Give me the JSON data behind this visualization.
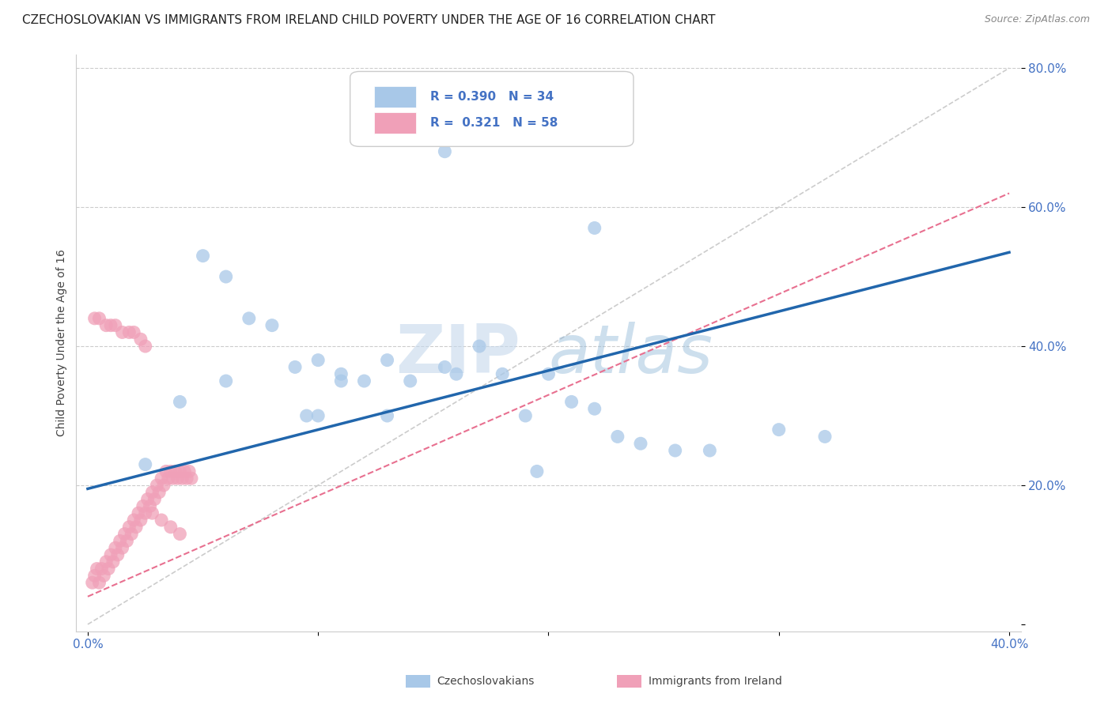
{
  "title": "CZECHOSLOVAKIAN VS IMMIGRANTS FROM IRELAND CHILD POVERTY UNDER THE AGE OF 16 CORRELATION CHART",
  "source": "Source: ZipAtlas.com",
  "ylabel": "Child Poverty Under the Age of 16",
  "xlabel": "",
  "xlim": [
    -0.005,
    0.405
  ],
  "ylim": [
    -0.01,
    0.82
  ],
  "xticks": [
    0.0,
    0.1,
    0.2,
    0.3,
    0.4
  ],
  "yticks": [
    0.0,
    0.2,
    0.4,
    0.6,
    0.8
  ],
  "xtick_labels": [
    "0.0%",
    "",
    "",
    "",
    "40.0%"
  ],
  "ytick_labels": [
    "",
    "20.0%",
    "40.0%",
    "60.0%",
    "80.0%"
  ],
  "blue_color": "#A8C8E8",
  "pink_color": "#F0A0B8",
  "blue_line_color": "#2166AC",
  "pink_line_color": "#E87090",
  "legend_R1": "0.390",
  "legend_N1": "34",
  "legend_R2": "0.321",
  "legend_N2": "58",
  "legend_label1": "Czechoslovakians",
  "legend_label2": "Immigrants from Ireland",
  "watermark_zip": "ZIP",
  "watermark_atlas": "atlas",
  "blue_points_x": [
    0.025,
    0.04,
    0.05,
    0.06,
    0.06,
    0.07,
    0.08,
    0.09,
    0.095,
    0.1,
    0.1,
    0.11,
    0.11,
    0.12,
    0.13,
    0.13,
    0.14,
    0.155,
    0.16,
    0.17,
    0.18,
    0.19,
    0.2,
    0.21,
    0.22,
    0.23,
    0.24,
    0.255,
    0.27,
    0.3,
    0.155,
    0.22,
    0.195,
    0.32
  ],
  "blue_points_y": [
    0.23,
    0.32,
    0.53,
    0.5,
    0.35,
    0.44,
    0.43,
    0.37,
    0.3,
    0.3,
    0.38,
    0.35,
    0.36,
    0.35,
    0.38,
    0.3,
    0.35,
    0.37,
    0.36,
    0.4,
    0.36,
    0.3,
    0.36,
    0.32,
    0.31,
    0.27,
    0.26,
    0.25,
    0.25,
    0.28,
    0.68,
    0.57,
    0.22,
    0.27
  ],
  "pink_points_x": [
    0.002,
    0.003,
    0.004,
    0.005,
    0.006,
    0.007,
    0.008,
    0.009,
    0.01,
    0.011,
    0.012,
    0.013,
    0.014,
    0.015,
    0.016,
    0.017,
    0.018,
    0.019,
    0.02,
    0.021,
    0.022,
    0.023,
    0.024,
    0.025,
    0.026,
    0.027,
    0.028,
    0.029,
    0.03,
    0.031,
    0.032,
    0.033,
    0.034,
    0.035,
    0.036,
    0.037,
    0.038,
    0.039,
    0.04,
    0.041,
    0.042,
    0.043,
    0.044,
    0.045,
    0.003,
    0.005,
    0.008,
    0.01,
    0.012,
    0.015,
    0.018,
    0.02,
    0.023,
    0.025,
    0.028,
    0.032,
    0.036,
    0.04
  ],
  "pink_points_y": [
    0.06,
    0.07,
    0.08,
    0.06,
    0.08,
    0.07,
    0.09,
    0.08,
    0.1,
    0.09,
    0.11,
    0.1,
    0.12,
    0.11,
    0.13,
    0.12,
    0.14,
    0.13,
    0.15,
    0.14,
    0.16,
    0.15,
    0.17,
    0.16,
    0.18,
    0.17,
    0.19,
    0.18,
    0.2,
    0.19,
    0.21,
    0.2,
    0.22,
    0.21,
    0.22,
    0.21,
    0.22,
    0.21,
    0.22,
    0.21,
    0.22,
    0.21,
    0.22,
    0.21,
    0.44,
    0.44,
    0.43,
    0.43,
    0.43,
    0.42,
    0.42,
    0.42,
    0.41,
    0.4,
    0.16,
    0.15,
    0.14,
    0.13
  ],
  "blue_trend_x": [
    0.0,
    0.4
  ],
  "blue_trend_y": [
    0.195,
    0.535
  ],
  "pink_trend_x": [
    0.0,
    0.4
  ],
  "pink_trend_y": [
    0.04,
    0.62
  ],
  "diag_line_x": [
    0.0,
    0.4
  ],
  "diag_line_y": [
    0.0,
    0.8
  ],
  "background_color": "#ffffff",
  "grid_color": "#cccccc"
}
